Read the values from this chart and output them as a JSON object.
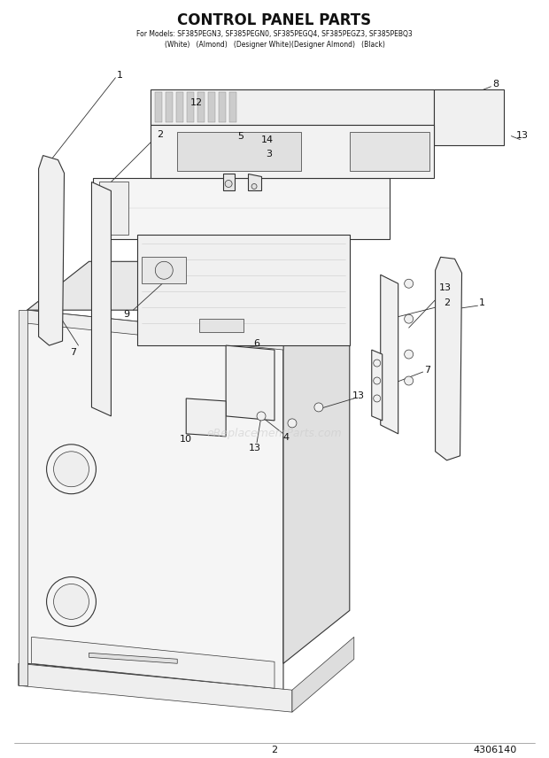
{
  "title": "CONTROL PANEL PARTS",
  "subtitle1": "For Models: SF385PEGN3, SF385PEGN0, SF385PEGQ4, SF385PEGZ3, SF385PEBQ3",
  "subtitle2": "(White)   (Almond)   (Designer White)(Designer Almond)   (Black)",
  "page_num": "2",
  "doc_num": "4306140",
  "bg_color": "#ffffff",
  "lc": "#333333",
  "watermark": "eReplacementParts.com"
}
